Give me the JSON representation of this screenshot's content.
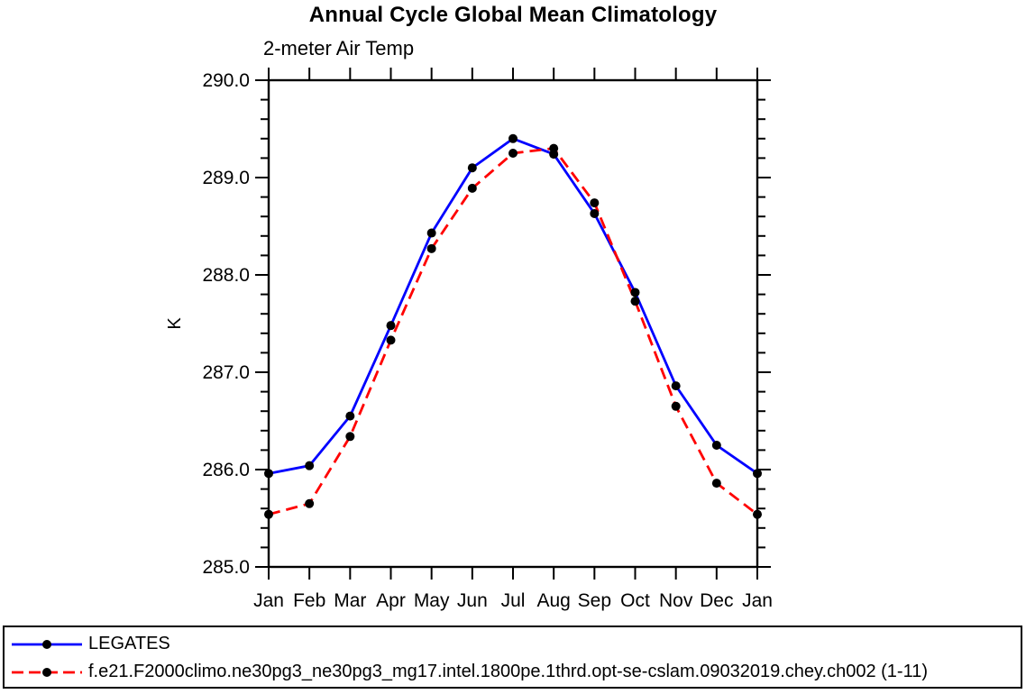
{
  "chart_data": {
    "type": "line",
    "title": "Annual Cycle Global Mean Climatology",
    "subtitle": "2-meter Air Temp",
    "ylabel": "K",
    "x_tick_labels": [
      "Jan",
      "Feb",
      "Mar",
      "Apr",
      "May",
      "Jun",
      "Jul",
      "Aug",
      "Sep",
      "Oct",
      "Nov",
      "Dec",
      "Jan"
    ],
    "y_tick_values": [
      285.0,
      286.0,
      287.0,
      288.0,
      289.0,
      290.0
    ],
    "y_tick_labels": [
      "285.0",
      "286.0",
      "287.0",
      "288.0",
      "289.0",
      "290.0"
    ],
    "ylim": [
      285.0,
      290.0
    ],
    "y_minor_step": 0.2,
    "grid": false,
    "legend_position": "bottom-box",
    "axis_color": "#000000",
    "marker": {
      "shape": "circle",
      "color": "#000000"
    },
    "series": [
      {
        "name": "LEGATES",
        "color": "#0000ff",
        "line_style": "solid",
        "values": [
          285.96,
          286.04,
          286.55,
          287.48,
          288.43,
          289.1,
          289.4,
          289.24,
          288.63,
          287.82,
          286.86,
          286.25,
          285.96
        ]
      },
      {
        "name": "f.e21.F2000climo.ne30pg3_ne30pg3_mg17.intel.1800pe.1thrd.opt-se-cslam.09032019.chey.ch002 (1-11)",
        "color": "#ff0000",
        "line_style": "dashed",
        "values": [
          285.54,
          285.65,
          286.34,
          287.33,
          288.27,
          288.89,
          289.25,
          289.3,
          288.74,
          287.73,
          286.65,
          285.86,
          285.54
        ]
      }
    ]
  }
}
